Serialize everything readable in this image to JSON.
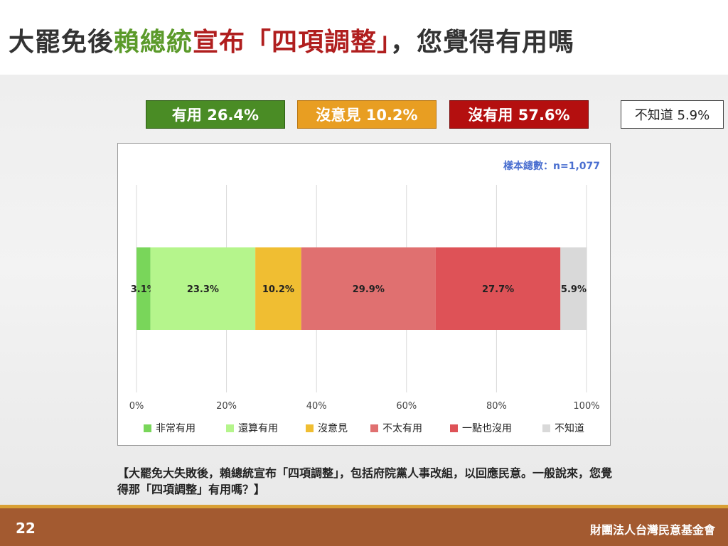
{
  "title": {
    "part1": "大罷免後",
    "part2": "賴總統",
    "part3": "宣布「四項調整」",
    "part4": "，您覺得有用嗎",
    "colors": {
      "default": "#333333",
      "green": "#5b9a2a",
      "red": "#b01e1e"
    }
  },
  "summary": {
    "useful": {
      "label": "有用 26.4%",
      "color": "#4a8c25"
    },
    "neutral": {
      "label": "沒意見 10.2%",
      "color": "#e89e22"
    },
    "useless": {
      "label": "沒有用 57.6%",
      "color": "#b40f0f"
    },
    "unknown": {
      "label": "不知道 5.9%",
      "color": "#ffffff"
    }
  },
  "chart_data": {
    "type": "bar",
    "orientation": "horizontal",
    "stacked": true,
    "percent": true,
    "sample_note": "樣本總數：n=1,077",
    "xlim": [
      0,
      100
    ],
    "x_ticks": [
      "0%",
      "20%",
      "40%",
      "60%",
      "80%",
      "100%"
    ],
    "grid": true,
    "legend_position": "bottom",
    "series": [
      {
        "name": "非常有用",
        "value": 3.1,
        "label": "3.1%",
        "color": "#79d65a"
      },
      {
        "name": "還算有用",
        "value": 23.3,
        "label": "23.3%",
        "color": "#b5f58c"
      },
      {
        "name": "沒意見",
        "value": 10.2,
        "label": "10.2%",
        "color": "#f0be32"
      },
      {
        "name": "不太有用",
        "value": 29.9,
        "label": "29.9%",
        "color": "#e07070"
      },
      {
        "name": "一點也沒用",
        "value": 27.7,
        "label": "27.7%",
        "color": "#de5257"
      },
      {
        "name": "不知道",
        "value": 5.9,
        "label": "5.9%",
        "color": "#d9d9d9"
      }
    ]
  },
  "question": "【大罷免大失敗後，賴總統宣布「四項調整」，包括府院黨人事改組，以回應民意。一般說來，您覺得那「四項調整」有用嗎？】",
  "footer": {
    "page_number": "22",
    "organization": "財團法人台灣民意基金會"
  }
}
